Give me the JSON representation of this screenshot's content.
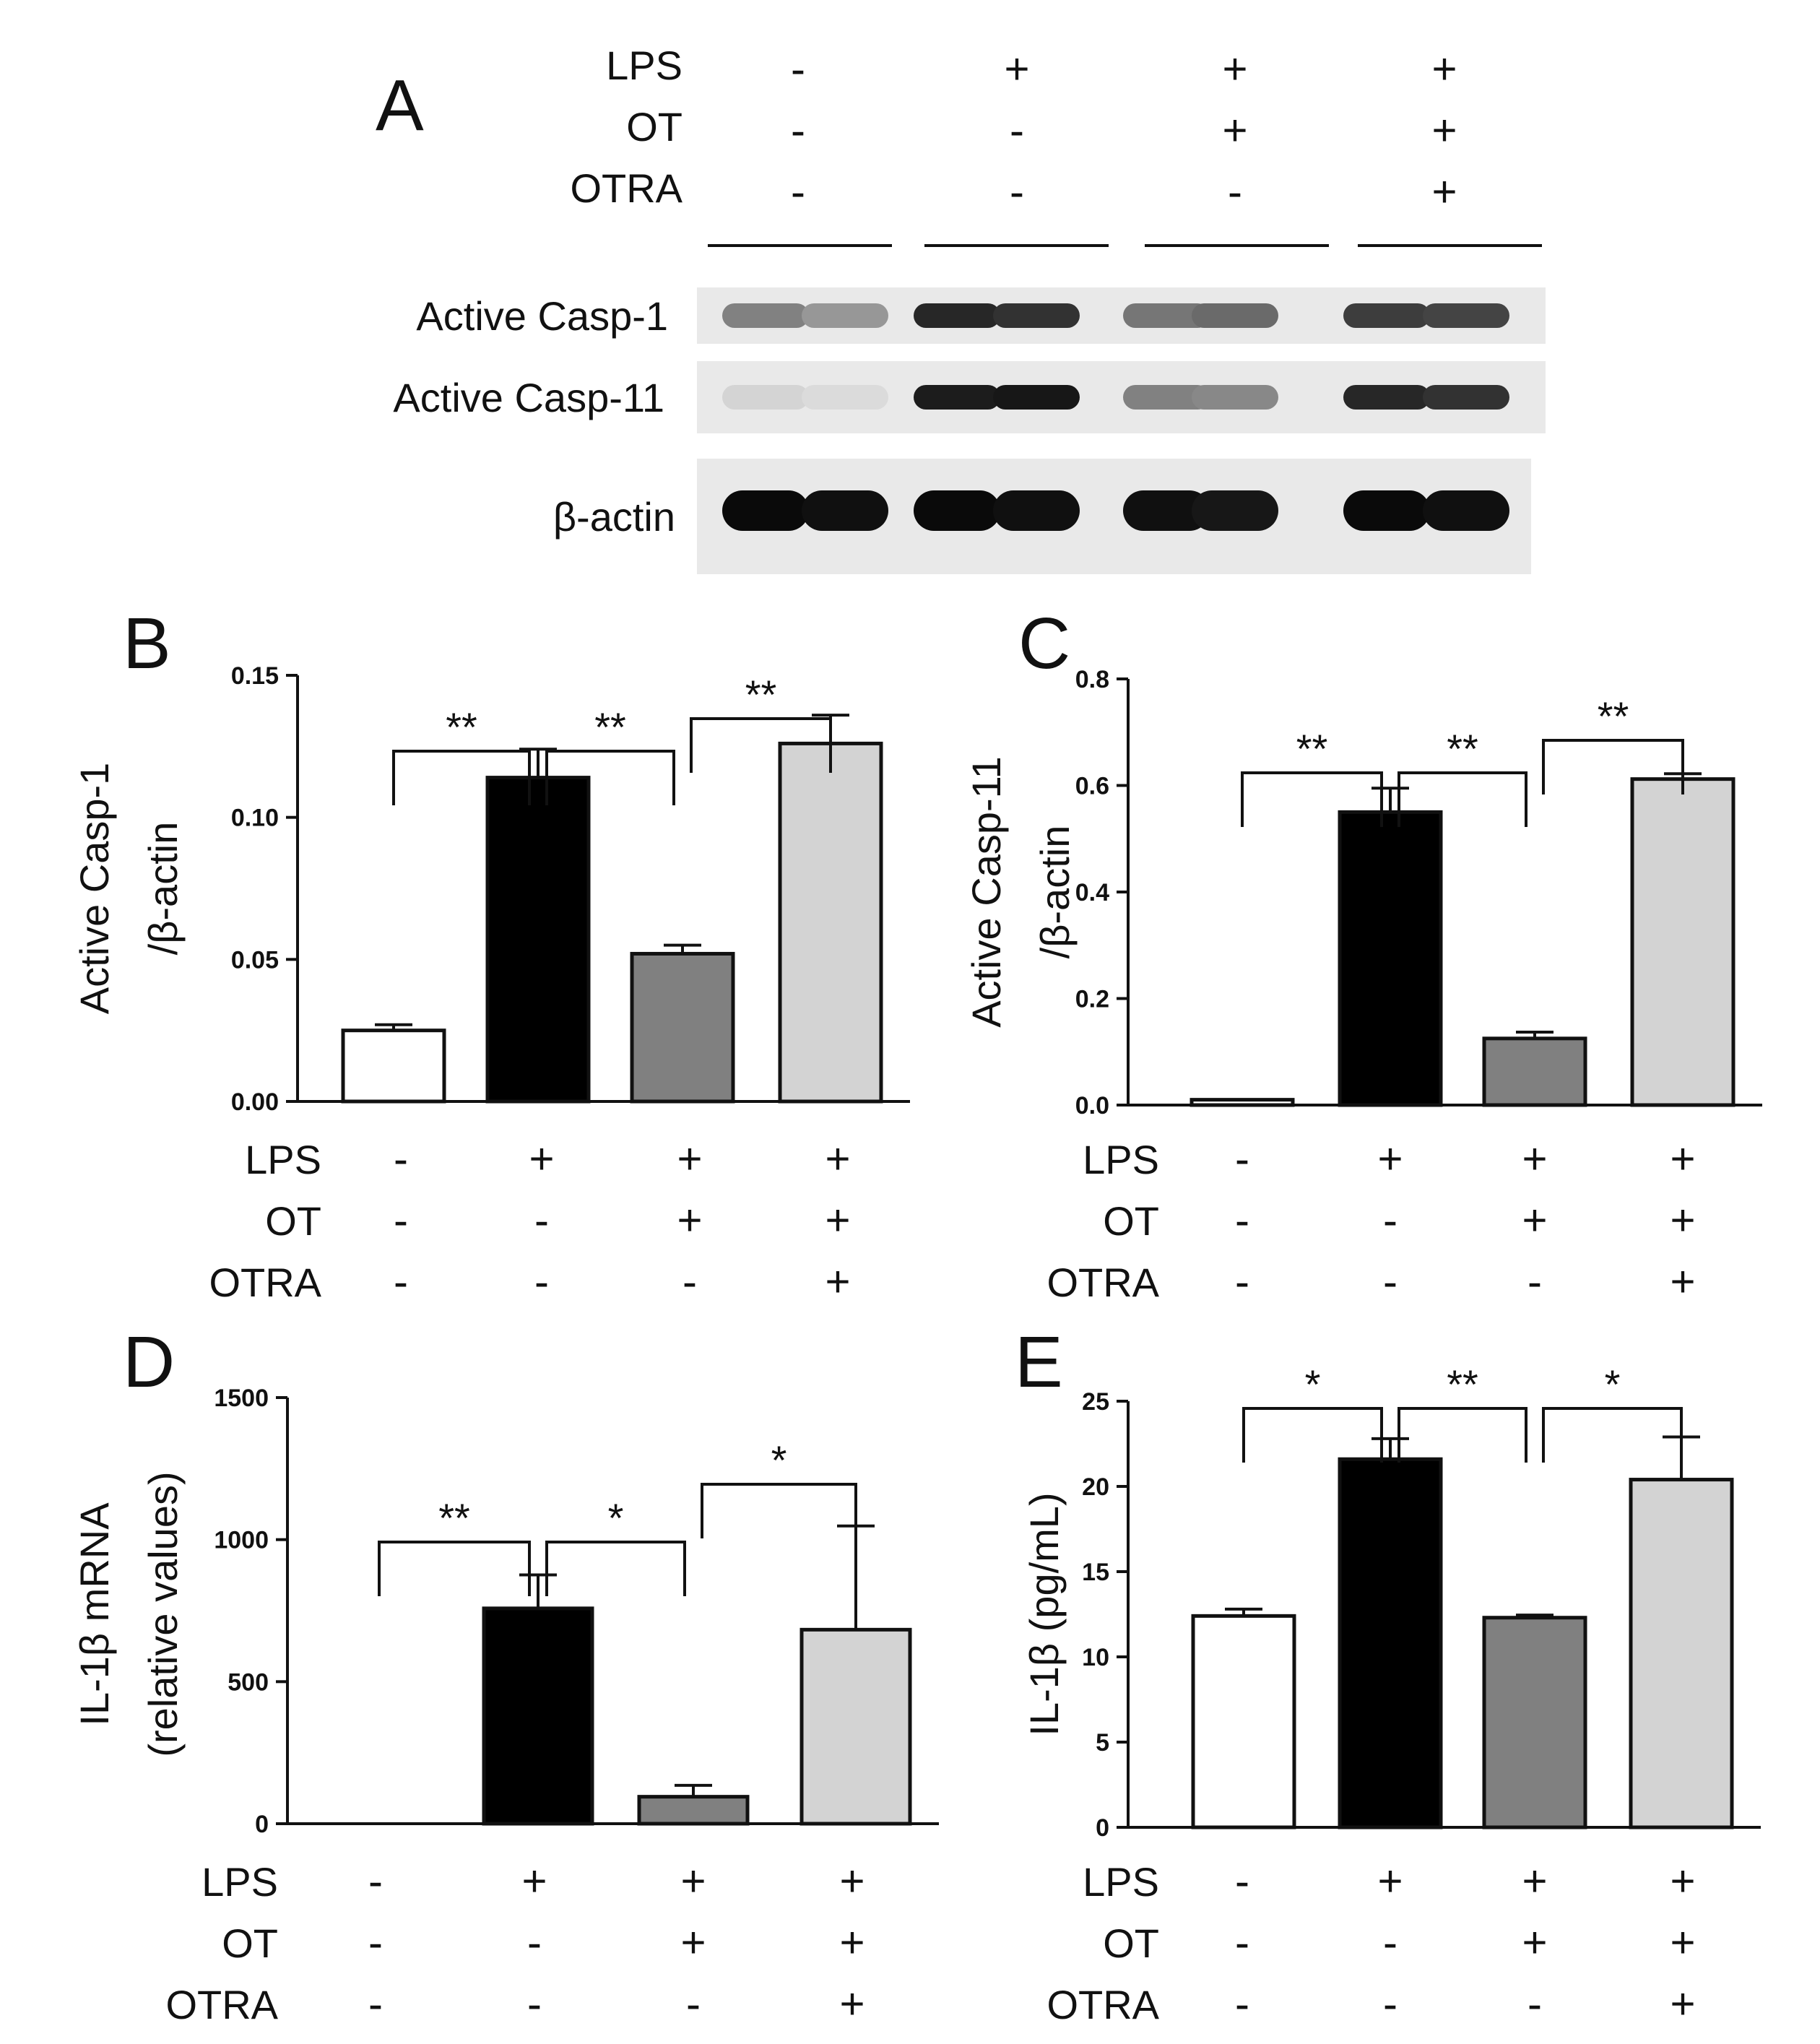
{
  "conditions": {
    "rows": [
      "LPS",
      "OT",
      "OTRA"
    ],
    "signs": [
      [
        "-",
        "+",
        "+",
        "+"
      ],
      [
        "-",
        "-",
        "+",
        "+"
      ],
      [
        "-",
        "-",
        "-",
        "+"
      ]
    ]
  },
  "colors": {
    "groups": [
      "#ffffff",
      "#000000",
      "#808080",
      "#d3d3d3"
    ],
    "stroke": "#111111"
  },
  "blot": {
    "letter": "A",
    "row_labels": [
      "Active Casp-1",
      "Active Casp-11",
      "β-actin"
    ],
    "band_intensity": [
      [
        0.45,
        0.35,
        0.85,
        0.8,
        0.5,
        0.55,
        0.75,
        0.72
      ],
      [
        0.08,
        0.05,
        0.9,
        0.92,
        0.45,
        0.42,
        0.85,
        0.8
      ],
      [
        0.98,
        0.95,
        0.98,
        0.95,
        0.95,
        0.92,
        0.98,
        0.95
      ]
    ]
  },
  "chart_data": [
    {
      "panel": "B",
      "type": "bar",
      "ylabel": [
        "Active Casp-1",
        "/β-actin"
      ],
      "ylim": [
        0,
        0.15
      ],
      "yticks": [
        0,
        0.05,
        0.1,
        0.15
      ],
      "tick_labels": [
        "0.00",
        "0.05",
        "0.10",
        "0.15"
      ],
      "values": [
        0.025,
        0.114,
        0.052,
        0.126
      ],
      "errors": [
        0.002,
        0.01,
        0.003,
        0.01
      ],
      "sig": [
        {
          "from": 0,
          "to": 1,
          "label": "**"
        },
        {
          "from": 1,
          "to": 2,
          "label": "**"
        },
        {
          "from": 2,
          "to": 3,
          "label": "**"
        }
      ]
    },
    {
      "panel": "C",
      "type": "bar",
      "ylabel": [
        "Active Casp-11",
        "/β-actin"
      ],
      "ylim": [
        0,
        0.8
      ],
      "yticks": [
        0,
        0.2,
        0.4,
        0.6,
        0.8
      ],
      "tick_labels": [
        "0.0",
        "0.2",
        "0.4",
        "0.6",
        "0.8"
      ],
      "values": [
        0.01,
        0.55,
        0.125,
        0.612
      ],
      "errors": [
        0.0,
        0.045,
        0.012,
        0.01
      ],
      "sig": [
        {
          "from": 0,
          "to": 1,
          "label": "**"
        },
        {
          "from": 1,
          "to": 2,
          "label": "**"
        },
        {
          "from": 2,
          "to": 3,
          "label": "**"
        }
      ]
    },
    {
      "panel": "D",
      "type": "bar",
      "ylabel": [
        "IL-1β mRNA",
        "(relative values)"
      ],
      "ylim": [
        0,
        1500
      ],
      "yticks": [
        0,
        500,
        1000,
        1500
      ],
      "tick_labels": [
        "0",
        "500",
        "1000",
        "1500"
      ],
      "values": [
        0,
        758,
        95,
        683
      ],
      "errors": [
        0,
        118,
        40,
        365
      ],
      "sig": [
        {
          "from": 0,
          "to": 1,
          "label": "**"
        },
        {
          "from": 1,
          "to": 2,
          "label": "*"
        },
        {
          "from": 2,
          "to": 3,
          "label": "*"
        }
      ]
    },
    {
      "panel": "E",
      "type": "bar",
      "ylabel": [
        "IL-1β (pg/mL)"
      ],
      "ylim": [
        0,
        25
      ],
      "yticks": [
        0,
        5,
        10,
        15,
        20,
        25
      ],
      "tick_labels": [
        "0",
        "5",
        "10",
        "15",
        "20",
        "25"
      ],
      "values": [
        12.4,
        21.6,
        12.3,
        20.4
      ],
      "errors": [
        0.4,
        1.2,
        0.15,
        2.5
      ],
      "sig": [
        {
          "from": 0,
          "to": 1,
          "label": "*"
        },
        {
          "from": 1,
          "to": 2,
          "label": "**"
        },
        {
          "from": 2,
          "to": 3,
          "label": "*"
        }
      ]
    }
  ]
}
